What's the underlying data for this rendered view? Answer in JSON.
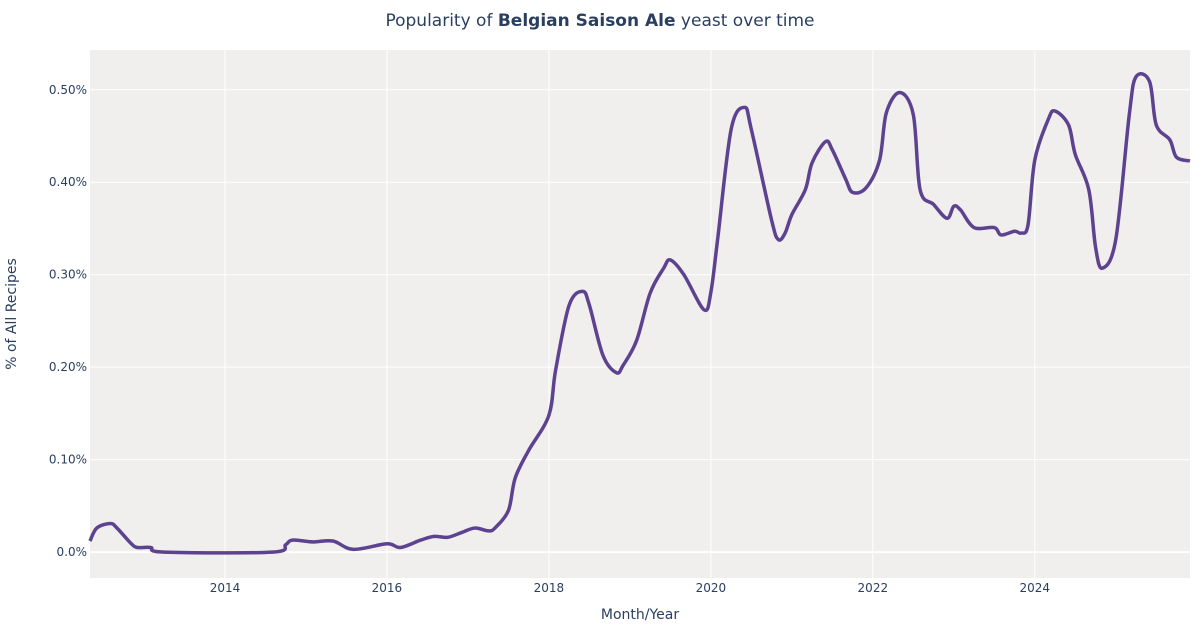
{
  "chart_data": {
    "type": "line",
    "title": {
      "prefix": "Popularity of ",
      "bold": "Belgian Saison Ale",
      "suffix": " yeast over time"
    },
    "xlabel": "Month/Year",
    "ylabel": "% of All Recipes",
    "xlim": [
      "2012-05",
      "2025-12"
    ],
    "ylim": [
      -0.028,
      0.543
    ],
    "x_ticks": [
      "2014",
      "2016",
      "2018",
      "2020",
      "2022",
      "2024"
    ],
    "y_ticks": [
      0,
      0.1,
      0.2,
      0.3,
      0.4,
      0.5
    ],
    "y_tick_labels": [
      "0.0%",
      "0.10%",
      "0.20%",
      "0.30%",
      "0.40%",
      "0.50%"
    ],
    "grid": true,
    "line_color": "#5c428f",
    "plot_bg": "#f0efee",
    "series": [
      {
        "x": [
          "2012-05",
          "2012-06",
          "2012-08",
          "2012-09",
          "2012-11",
          "2012-12",
          "2013-02",
          "2013-04",
          "2014-08",
          "2014-10",
          "2014-11",
          "2015-02",
          "2015-05",
          "2015-08",
          "2016-01",
          "2016-03",
          "2016-06",
          "2016-08",
          "2016-10",
          "2016-12",
          "2017-02",
          "2017-04",
          "2017-05",
          "2017-07",
          "2017-08",
          "2017-10",
          "2018-01",
          "2018-02",
          "2018-04",
          "2018-06",
          "2018-07",
          "2018-09",
          "2018-11",
          "2018-12",
          "2019-02",
          "2019-04",
          "2019-06",
          "2019-07",
          "2019-09",
          "2019-12",
          "2020-01",
          "2020-02",
          "2020-04",
          "2020-06",
          "2020-07",
          "2020-10",
          "2020-11",
          "2020-12",
          "2021-01",
          "2021-03",
          "2021-04",
          "2021-06",
          "2021-07",
          "2021-09",
          "2021-10",
          "2021-12",
          "2022-02",
          "2022-03",
          "2022-05",
          "2022-07",
          "2022-08",
          "2022-10",
          "2022-12",
          "2023-01",
          "2023-02",
          "2023-04",
          "2023-07",
          "2023-08",
          "2023-10",
          "2023-11",
          "2023-12",
          "2024-01",
          "2024-03",
          "2024-04",
          "2024-06",
          "2024-07",
          "2024-09",
          "2024-10",
          "2024-11",
          "2025-01",
          "2025-03",
          "2025-04",
          "2025-06",
          "2025-07",
          "2025-09",
          "2025-10",
          "2025-12"
        ],
        "y": [
          0.012,
          0.026,
          0.031,
          0.026,
          0.01,
          0.005,
          0.005,
          0.0,
          0.0,
          0.008,
          0.013,
          0.011,
          0.012,
          0.003,
          0.009,
          0.005,
          0.013,
          0.017,
          0.016,
          0.021,
          0.026,
          0.023,
          0.026,
          0.045,
          0.08,
          0.11,
          0.148,
          0.197,
          0.267,
          0.282,
          0.267,
          0.213,
          0.194,
          0.202,
          0.229,
          0.28,
          0.307,
          0.316,
          0.3,
          0.262,
          0.281,
          0.338,
          0.457,
          0.481,
          0.457,
          0.359,
          0.338,
          0.345,
          0.365,
          0.392,
          0.421,
          0.444,
          0.435,
          0.403,
          0.389,
          0.394,
          0.424,
          0.475,
          0.497,
          0.473,
          0.392,
          0.376,
          0.361,
          0.374,
          0.37,
          0.351,
          0.351,
          0.343,
          0.347,
          0.345,
          0.354,
          0.424,
          0.468,
          0.477,
          0.462,
          0.43,
          0.392,
          0.33,
          0.307,
          0.338,
          0.473,
          0.514,
          0.509,
          0.462,
          0.446,
          0.427,
          0.423
        ]
      }
    ]
  }
}
